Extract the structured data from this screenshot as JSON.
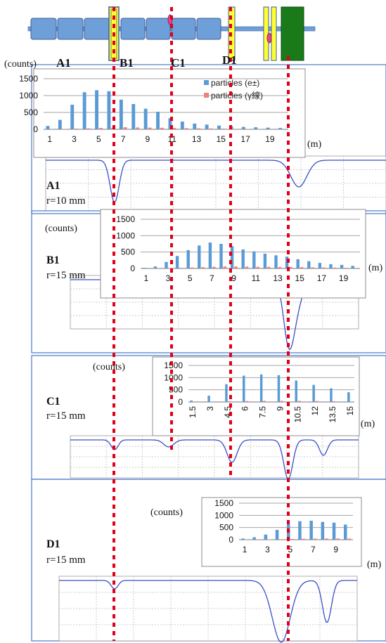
{
  "beamline": {
    "elements": [
      "A1",
      "B1",
      "C1",
      "D1"
    ]
  },
  "panels": [
    {
      "name": "A1",
      "radius_label": "r=10 mm",
      "counts_label": "(counts)",
      "m_label": "(m)"
    },
    {
      "name": "B1",
      "radius_label": "r=15 mm",
      "counts_label": "(counts)",
      "m_label": "(m)"
    },
    {
      "name": "C1",
      "radius_label": "r=15 mm",
      "counts_label": "(counts)",
      "m_label": "(m)"
    },
    {
      "name": "D1",
      "radius_label": "r=15 mm",
      "counts_label": "(counts)",
      "m_label": "(m)"
    }
  ],
  "colors": {
    "electron": "#5b9bd5",
    "gamma": "#f08080",
    "marker": "#e0001a",
    "magnet_yellow": "#ffff33",
    "magnet_green": "#1a7a1a",
    "pipe": "#6f9fd8",
    "trace": "#3b4fc4"
  },
  "chart_data": [
    {
      "type": "bar",
      "panel": "A1",
      "categories": [
        "1",
        "2",
        "3",
        "4",
        "5",
        "6",
        "7",
        "8",
        "9",
        "10",
        "11",
        "12",
        "13",
        "14",
        "15",
        "16",
        "17",
        "18",
        "19",
        "20"
      ],
      "tick_labels": [
        "1",
        "3",
        "5",
        "7",
        "9",
        "11",
        "13",
        "15",
        "17",
        "19"
      ],
      "ylim": [
        0,
        1500
      ],
      "yticks": [
        "0",
        "500",
        "1000",
        "1500"
      ],
      "series": [
        {
          "name": "particles (e±)",
          "values": [
            100,
            280,
            730,
            1100,
            1160,
            1130,
            880,
            750,
            610,
            520,
            330,
            230,
            170,
            140,
            110,
            90,
            70,
            60,
            50,
            40
          ]
        },
        {
          "name": "particles (γ線)",
          "values": [
            5,
            10,
            20,
            30,
            40,
            50,
            60,
            55,
            50,
            45,
            40,
            35,
            30,
            25,
            20,
            15,
            10,
            8,
            5,
            3
          ]
        }
      ],
      "legend": "top-right"
    },
    {
      "type": "bar",
      "panel": "B1",
      "categories": [
        "1",
        "2",
        "3",
        "4",
        "5",
        "6",
        "7",
        "8",
        "9",
        "10",
        "11",
        "12",
        "13",
        "14",
        "15",
        "16",
        "17",
        "18",
        "19",
        "20"
      ],
      "tick_labels": [
        "1",
        "3",
        "5",
        "7",
        "9",
        "11",
        "13",
        "15",
        "17",
        "19"
      ],
      "ylim": [
        0,
        1500
      ],
      "yticks": [
        "0",
        "500",
        "1000",
        "1500"
      ],
      "series": [
        {
          "name": "",
          "values": [
            20,
            60,
            200,
            380,
            560,
            700,
            790,
            750,
            680,
            580,
            520,
            450,
            400,
            360,
            280,
            220,
            170,
            130,
            110,
            80
          ]
        },
        {
          "name": "",
          "values": [
            0,
            5,
            10,
            20,
            30,
            40,
            50,
            60,
            60,
            55,
            50,
            50,
            45,
            45,
            40,
            35,
            30,
            25,
            20,
            15
          ]
        }
      ]
    },
    {
      "type": "bar",
      "panel": "C1",
      "categories": [
        "1.5",
        "2.25",
        "3",
        "3.75",
        "4.5",
        "5.25",
        "6",
        "6.75",
        "7.5",
        "8.25",
        "9",
        "9.75",
        "10.5",
        "11.25",
        "12",
        "12.75",
        "13.5",
        "14.25",
        "15"
      ],
      "tick_labels": [
        "1.5",
        "3",
        "4.5",
        "6",
        "7.5",
        "9",
        "10.5",
        "12",
        "13.5",
        "15"
      ],
      "ylim": [
        0,
        1500
      ],
      "yticks": [
        "0",
        "500",
        "1000",
        "1500"
      ],
      "series": [
        {
          "name": "",
          "values": [
            60,
            0,
            260,
            0,
            730,
            0,
            1080,
            0,
            1130,
            0,
            1100,
            0,
            880,
            0,
            700,
            0,
            560,
            0,
            400
          ]
        },
        {
          "name": "",
          "values": [
            5,
            0,
            10,
            0,
            30,
            0,
            40,
            0,
            50,
            0,
            50,
            0,
            45,
            0,
            40,
            0,
            30,
            0,
            20
          ]
        }
      ]
    },
    {
      "type": "bar",
      "panel": "D1",
      "categories": [
        "1",
        "2",
        "3",
        "4",
        "5",
        "6",
        "7",
        "8",
        "9",
        "10"
      ],
      "tick_labels": [
        "1",
        "3",
        "5",
        "7",
        "9"
      ],
      "ylim": [
        0,
        1500
      ],
      "yticks": [
        "0",
        "500",
        "1000",
        "1500"
      ],
      "series": [
        {
          "name": "",
          "values": [
            50,
            100,
            210,
            400,
            650,
            760,
            780,
            730,
            700,
            620
          ]
        },
        {
          "name": "",
          "values": [
            5,
            10,
            15,
            20,
            30,
            40,
            45,
            50,
            50,
            45
          ]
        }
      ]
    }
  ]
}
